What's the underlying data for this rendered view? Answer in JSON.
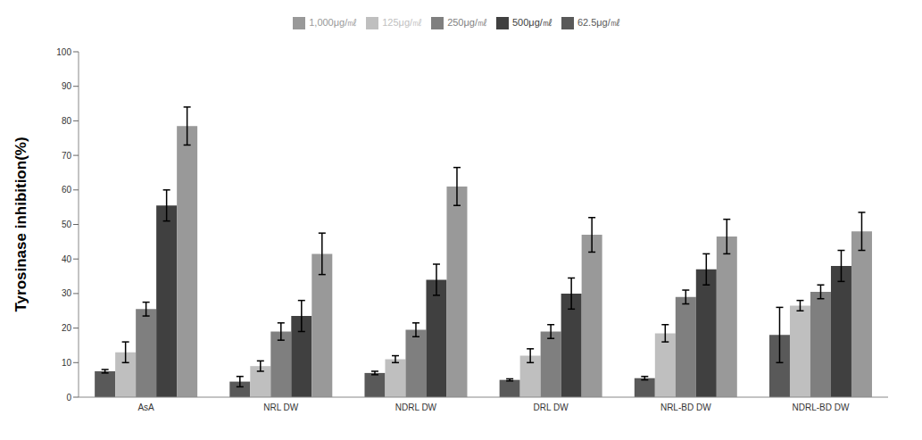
{
  "chart_data": {
    "type": "bar",
    "y_label": "Tyrosinase inhibition(%)",
    "categories": [
      "AsA",
      "NRL DW",
      "NDRL DW",
      "DRL DW",
      "NRL-BD DW",
      "NDRL-BD DW"
    ],
    "series": [
      {
        "name": "62.5μg/㎖",
        "color": "#595959",
        "values": [
          7.5,
          4.5,
          7,
          5,
          5.5,
          18
        ],
        "errors": [
          0.5,
          1.5,
          0.5,
          0.3,
          0.5,
          8
        ]
      },
      {
        "name": "125μg/㎖",
        "color": "#bfbfbf",
        "values": [
          13,
          9,
          11,
          12,
          18.5,
          26.5
        ],
        "errors": [
          3,
          1.5,
          1,
          2,
          2.5,
          1.5
        ]
      },
      {
        "name": "250μg/㎖",
        "color": "#7f7f7f",
        "values": [
          25.5,
          19,
          19.5,
          19,
          29,
          30.5
        ],
        "errors": [
          2,
          2.5,
          2,
          2,
          2,
          2
        ]
      },
      {
        "name": "500μg/㎖",
        "color": "#404040",
        "values": [
          55.5,
          23.5,
          34,
          30,
          37,
          38
        ],
        "errors": [
          4.5,
          4.5,
          4.5,
          4.5,
          4.5,
          4.5
        ]
      },
      {
        "name": "1,000μg/㎖",
        "color": "#999999",
        "values": [
          78.5,
          41.5,
          61,
          47,
          46.5,
          48
        ],
        "errors": [
          5.5,
          6,
          5.5,
          5,
          5,
          5.5
        ]
      }
    ],
    "ylim": [
      0,
      100
    ],
    "yticks": [
      0,
      10,
      20,
      30,
      40,
      50,
      60,
      70,
      80,
      90,
      100
    ],
    "grid": false,
    "legend": "top"
  }
}
